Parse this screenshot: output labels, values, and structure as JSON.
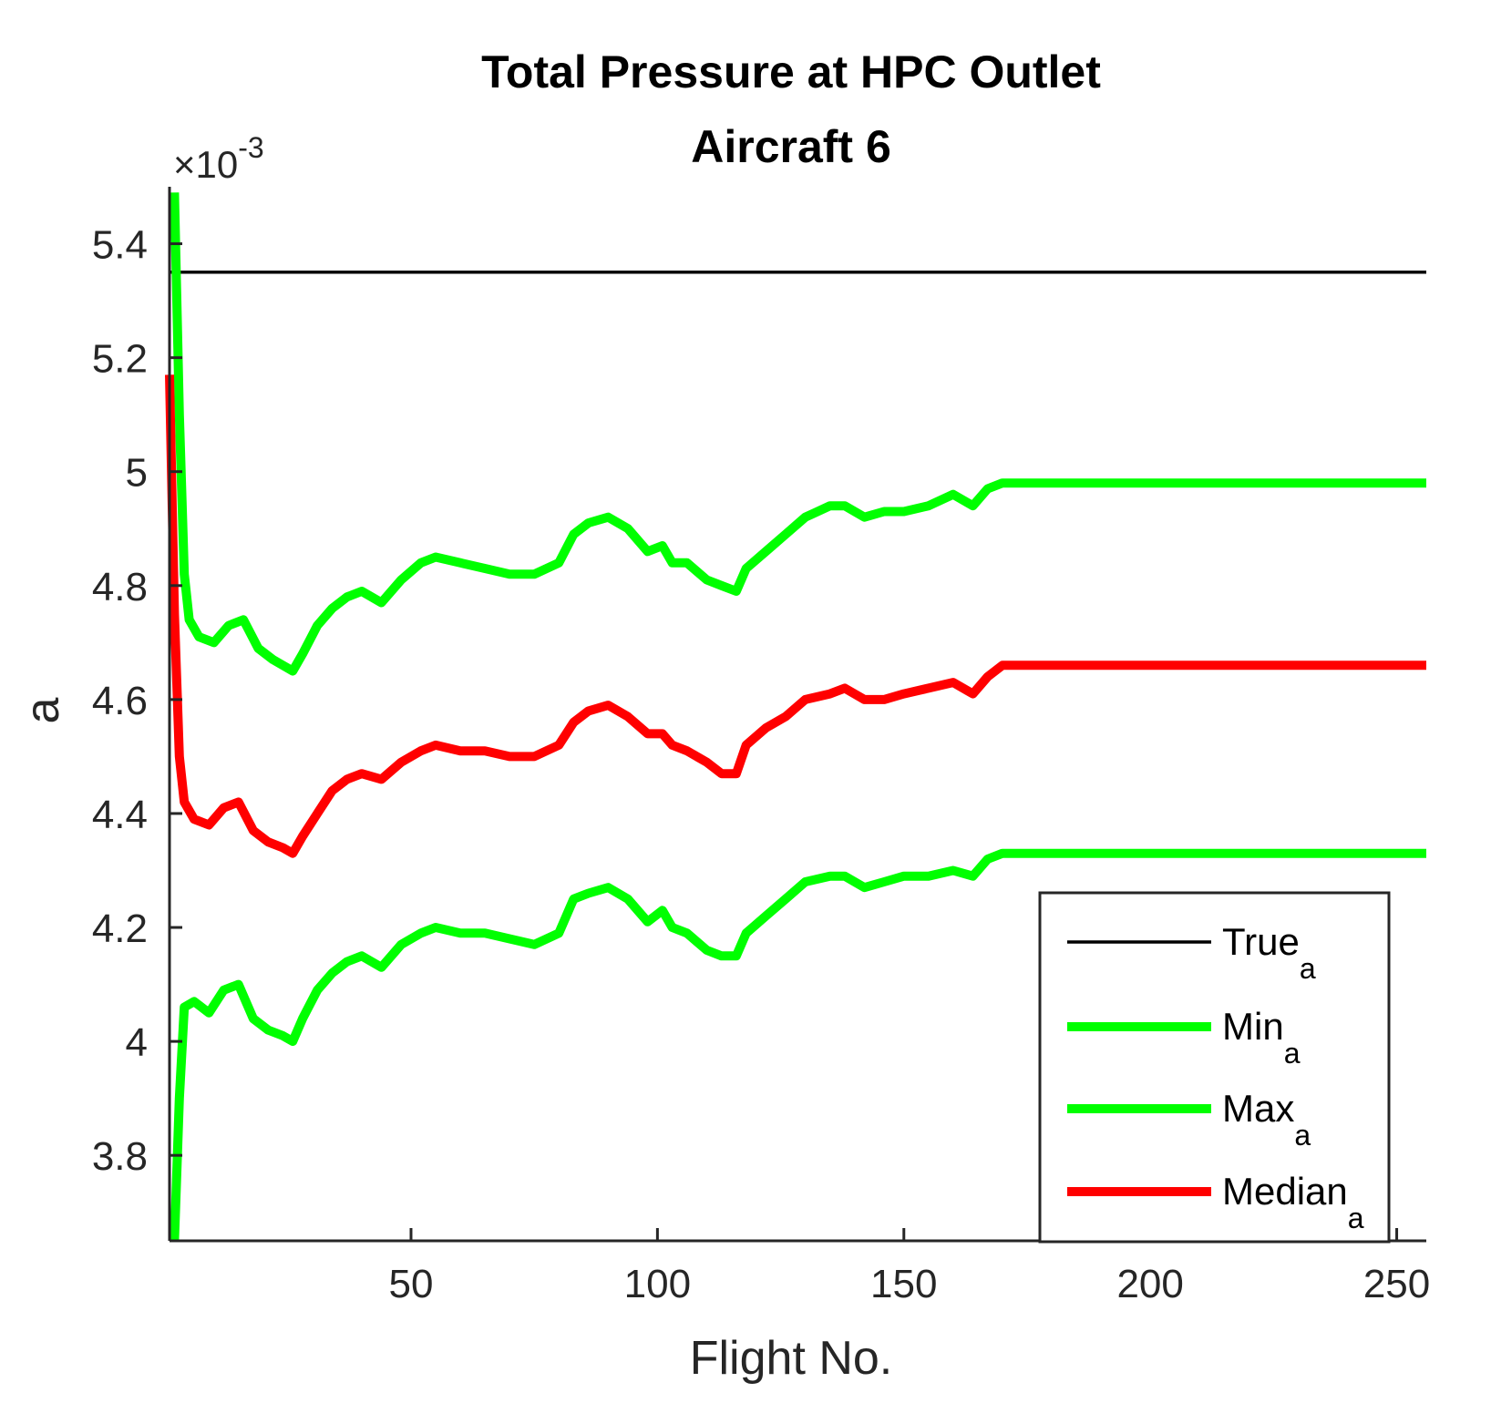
{
  "chart_data": {
    "type": "line",
    "title": "Total Pressure at HPC Outlet",
    "subtitle": "Aircraft 6",
    "xlabel": "Flight No.",
    "ylabel": "a",
    "y_exponent_label": "×10",
    "y_exponent_power": "-3",
    "xlim": [
      1,
      256
    ],
    "ylim": [
      3.65,
      5.5
    ],
    "x_ticks": [
      50,
      100,
      150,
      200,
      250
    ],
    "x_tick_labels": [
      "50",
      "100",
      "150",
      "200",
      "250"
    ],
    "y_ticks": [
      3.8,
      4.0,
      4.2,
      4.4,
      4.6,
      4.8,
      5.0,
      5.2,
      5.4
    ],
    "y_tick_labels": [
      "3.8",
      "4",
      "4.2",
      "4.4",
      "4.6",
      "4.8",
      "5",
      "5.2",
      "5.4"
    ],
    "grid": false,
    "legend_position": "bottom-right",
    "series": [
      {
        "name": "True",
        "subscript": "a",
        "color": "#000000",
        "width": "thin",
        "x": [
          1,
          256
        ],
        "y": [
          5.35,
          5.35
        ]
      },
      {
        "name": "Min",
        "subscript": "a",
        "color": "#00ff00",
        "width": "thick",
        "x": [
          2,
          3,
          4,
          6,
          9,
          12,
          15,
          18,
          21,
          24,
          26,
          28,
          31,
          34,
          37,
          40,
          44,
          48,
          52,
          55,
          60,
          65,
          70,
          75,
          80,
          83,
          86,
          90,
          94,
          98,
          101,
          103,
          106,
          110,
          113,
          116,
          118,
          122,
          126,
          130,
          135,
          138,
          142,
          146,
          150,
          155,
          160,
          164,
          167,
          170,
          200,
          256
        ],
        "y": [
          3.65,
          3.9,
          4.06,
          4.07,
          4.05,
          4.09,
          4.1,
          4.04,
          4.02,
          4.01,
          4.0,
          4.04,
          4.09,
          4.12,
          4.14,
          4.15,
          4.13,
          4.17,
          4.19,
          4.2,
          4.19,
          4.19,
          4.18,
          4.17,
          4.19,
          4.25,
          4.26,
          4.27,
          4.25,
          4.21,
          4.23,
          4.2,
          4.19,
          4.16,
          4.15,
          4.15,
          4.19,
          4.22,
          4.25,
          4.28,
          4.29,
          4.29,
          4.27,
          4.28,
          4.29,
          4.29,
          4.3,
          4.29,
          4.32,
          4.33,
          4.33,
          4.33
        ]
      },
      {
        "name": "Max",
        "subscript": "a",
        "color": "#00ff00",
        "width": "thick",
        "x": [
          2,
          3,
          4,
          5,
          7,
          10,
          13,
          16,
          19,
          22,
          24,
          26,
          28,
          31,
          34,
          37,
          40,
          44,
          48,
          52,
          55,
          60,
          65,
          70,
          75,
          80,
          83,
          86,
          90,
          94,
          98,
          101,
          103,
          106,
          110,
          113,
          116,
          118,
          122,
          126,
          130,
          135,
          138,
          142,
          146,
          150,
          155,
          160,
          164,
          167,
          170,
          200,
          256
        ],
        "y": [
          5.49,
          5.1,
          4.82,
          4.74,
          4.71,
          4.7,
          4.73,
          4.74,
          4.69,
          4.67,
          4.66,
          4.65,
          4.68,
          4.73,
          4.76,
          4.78,
          4.79,
          4.77,
          4.81,
          4.84,
          4.85,
          4.84,
          4.83,
          4.82,
          4.82,
          4.84,
          4.89,
          4.91,
          4.92,
          4.9,
          4.86,
          4.87,
          4.84,
          4.84,
          4.81,
          4.8,
          4.79,
          4.83,
          4.86,
          4.89,
          4.92,
          4.94,
          4.94,
          4.92,
          4.93,
          4.93,
          4.94,
          4.96,
          4.94,
          4.97,
          4.98,
          4.98,
          4.98
        ]
      },
      {
        "name": "Median",
        "subscript": "a",
        "color": "#ff0000",
        "width": "thick",
        "x": [
          1,
          2,
          3,
          4,
          6,
          9,
          12,
          15,
          18,
          21,
          24,
          26,
          28,
          31,
          34,
          37,
          40,
          44,
          48,
          52,
          55,
          60,
          65,
          70,
          75,
          80,
          83,
          86,
          90,
          94,
          98,
          101,
          103,
          106,
          110,
          113,
          116,
          118,
          122,
          126,
          130,
          135,
          138,
          142,
          146,
          150,
          155,
          160,
          164,
          167,
          170,
          200,
          256
        ],
        "y": [
          5.17,
          4.75,
          4.5,
          4.42,
          4.39,
          4.38,
          4.41,
          4.42,
          4.37,
          4.35,
          4.34,
          4.33,
          4.36,
          4.4,
          4.44,
          4.46,
          4.47,
          4.46,
          4.49,
          4.51,
          4.52,
          4.51,
          4.51,
          4.5,
          4.5,
          4.52,
          4.56,
          4.58,
          4.59,
          4.57,
          4.54,
          4.54,
          4.52,
          4.51,
          4.49,
          4.47,
          4.47,
          4.52,
          4.55,
          4.57,
          4.6,
          4.61,
          4.62,
          4.6,
          4.6,
          4.61,
          4.62,
          4.63,
          4.61,
          4.64,
          4.66,
          4.66,
          4.66
        ]
      }
    ]
  }
}
